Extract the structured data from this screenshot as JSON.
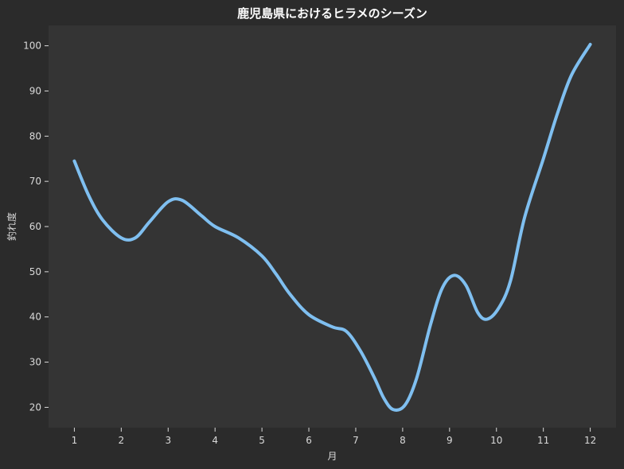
{
  "chart_data": {
    "type": "line",
    "title": "鹿児島県におけるヒラメのシーズン",
    "xlabel": "月",
    "ylabel": "釣れ度",
    "xlim": [
      0.45,
      12.55
    ],
    "ylim": [
      15.5,
      104.5
    ],
    "x_ticks": [
      1,
      2,
      3,
      4,
      5,
      6,
      7,
      8,
      9,
      10,
      11,
      12
    ],
    "y_ticks": [
      20,
      30,
      40,
      50,
      60,
      70,
      80,
      90,
      100
    ],
    "grid": false,
    "series": [
      {
        "x": [
          1,
          1.3,
          1.6,
          2,
          2.3,
          2.6,
          3,
          3.3,
          3.7,
          4,
          4.5,
          5,
          5.3,
          5.6,
          6,
          6.5,
          6.8,
          7.1,
          7.4,
          7.6,
          7.8,
          8.05,
          8.3,
          8.6,
          8.85,
          9.1,
          9.35,
          9.6,
          9.8,
          10.05,
          10.3,
          10.6,
          11,
          11.3,
          11.6,
          12
        ],
        "y": [
          74.5,
          67,
          61.5,
          57.5,
          57.5,
          61,
          65.5,
          65.8,
          62.5,
          60,
          57.5,
          53.5,
          49.5,
          45,
          40.5,
          37.8,
          36.8,
          32.5,
          26.5,
          22,
          19.5,
          20.5,
          26.5,
          38.5,
          46.5,
          49.2,
          47,
          41,
          39.5,
          42,
          48,
          62,
          75,
          85,
          93.5,
          100.3
        ],
        "color": "#7fbff0"
      }
    ],
    "colors": {
      "page_background": "#2b2b2b",
      "plot_background": "#343434",
      "line": "#7fbff0",
      "text": "#d9d9d9",
      "title": "#ffffff"
    }
  }
}
